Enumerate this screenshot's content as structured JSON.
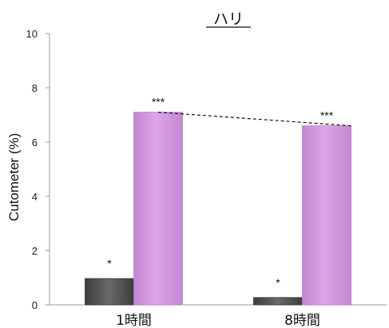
{
  "chart_data": {
    "type": "bar",
    "title": "ハリ",
    "ylabel": "Cutometer (%)",
    "xlabel": "",
    "ylim": [
      0,
      10
    ],
    "yticks": [
      "0",
      "2",
      "4",
      "6",
      "8",
      "10"
    ],
    "categories": [
      "1時間",
      "8時間"
    ],
    "series": [
      {
        "values": [
          0.97,
          0.27
        ],
        "color": "#555555"
      },
      {
        "values": [
          7.1,
          6.6
        ],
        "color": "#d49ae0"
      }
    ],
    "significance": [
      {
        "category": 0,
        "series": 0,
        "label": "*"
      },
      {
        "category": 0,
        "series": 1,
        "label": "***"
      },
      {
        "category": 1,
        "series": 0,
        "label": "*"
      },
      {
        "category": 1,
        "series": 1,
        "label": "***"
      }
    ],
    "trend_line": {
      "series": 1,
      "style": "dashed"
    },
    "grid": false,
    "legend": "none"
  }
}
